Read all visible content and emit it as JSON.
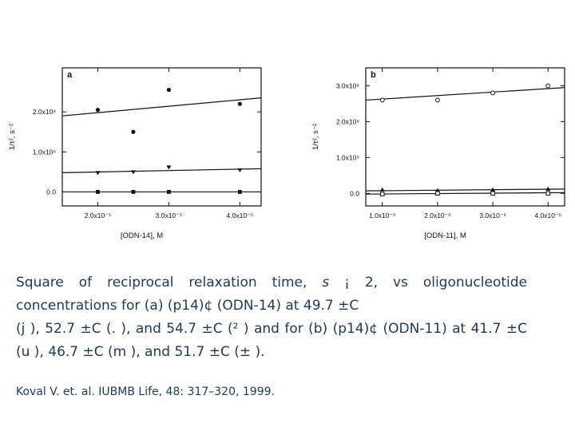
{
  "chart_data": [
    {
      "panel_label": "a",
      "type": "scatter",
      "xlabel": "[ODN-14], M",
      "ylabel": "1/τ², s⁻²",
      "xlim": [
        1.5e-05,
        4.3e-05
      ],
      "ylim": [
        -350000000.0,
        3100000000.0
      ],
      "x_ticks": [
        {
          "v": 2e-05,
          "label": "2.0x10⁻⁵"
        },
        {
          "v": 3e-05,
          "label": "3.0x10⁻⁵"
        },
        {
          "v": 4e-05,
          "label": "4.0x10⁻⁵"
        }
      ],
      "y_ticks": [
        {
          "v": 0,
          "label": "0.0"
        },
        {
          "v": 1000000000.0,
          "label": "1.0x10⁹"
        },
        {
          "v": 2000000000.0,
          "label": "2.0x10⁹"
        }
      ],
      "series": [
        {
          "marker": "circle",
          "x": [
            2e-05,
            2.5e-05,
            3e-05,
            4e-05
          ],
          "y": [
            2050000000.0,
            1500000000.0,
            2550000000.0,
            2200000000.0
          ],
          "fit": [
            1900000000.0,
            2350000000.0
          ]
        },
        {
          "marker": "triangle-down",
          "x": [
            2e-05,
            2.5e-05,
            3e-05,
            4e-05
          ],
          "y": [
            480000000.0,
            500000000.0,
            620000000.0,
            550000000.0
          ],
          "fit": [
            480000000.0,
            580000000.0
          ]
        },
        {
          "marker": "square",
          "x": [
            2e-05,
            2.5e-05,
            3e-05,
            4e-05
          ],
          "y": [
            0.0,
            0.0,
            0.0,
            0.0
          ],
          "fit": [
            0.0,
            0.0
          ]
        }
      ]
    },
    {
      "panel_label": "b",
      "type": "scatter",
      "xlabel": "[ODN-11], M",
      "ylabel": "1/τ², s⁻²",
      "xlim": [
        7e-06,
        4.3e-05
      ],
      "ylim": [
        -350000000.0,
        3500000000.0
      ],
      "x_ticks": [
        {
          "v": 1e-05,
          "label": "1.0x10⁻⁵"
        },
        {
          "v": 2e-05,
          "label": "2.0x10⁻⁵"
        },
        {
          "v": 3e-05,
          "label": "3.0x10⁻⁵"
        },
        {
          "v": 4e-05,
          "label": "4.0x10⁻⁵"
        }
      ],
      "y_ticks": [
        {
          "v": 0,
          "label": "0.0"
        },
        {
          "v": 1000000000.0,
          "label": "1.0x10⁹"
        },
        {
          "v": 2000000000.0,
          "label": "2.0x10⁹"
        },
        {
          "v": 3000000000.0,
          "label": "3.0x10⁹"
        }
      ],
      "series": [
        {
          "marker": "circle-open",
          "x": [
            1e-05,
            2e-05,
            3e-05,
            4e-05
          ],
          "y": [
            2600000000.0,
            2600000000.0,
            2800000000.0,
            3000000000.0
          ],
          "fit": [
            2600000000.0,
            2950000000.0
          ]
        },
        {
          "marker": "triangle-up",
          "x": [
            1e-05,
            2e-05,
            3e-05,
            4e-05
          ],
          "y": [
            100000000.0,
            80000000.0,
            100000000.0,
            120000000.0
          ],
          "fit": [
            70000000.0,
            120000000.0
          ]
        },
        {
          "marker": "square-open",
          "x": [
            1e-05,
            2e-05,
            3e-05,
            4e-05
          ],
          "y": [
            -20000000.0,
            0.0,
            0.0,
            0.0
          ],
          "fit": [
            -20000000.0,
            20000000.0
          ]
        }
      ]
    }
  ],
  "caption": {
    "p1": "Square of reciprocal relaxation time,",
    "p1_italic": "s",
    "p2": "¡ 2, vs oligonucleotide concentrations for (a) (p14)¢ (ODN-14) at 49.7 ±C",
    "p3": "(j ), 52.7 ±C (. ), and 54.7 ±C (² ) and for (b) (p14)¢ (ODN-11) at 41.7 ±C (u ), 46.7 ±C (m ), and 51.7 ±C (± )."
  },
  "citation": {
    "authors": "Koval V. et. al. IUBMB",
    "journal": "Life",
    "rest": ", 48: 317–320, 1999."
  }
}
